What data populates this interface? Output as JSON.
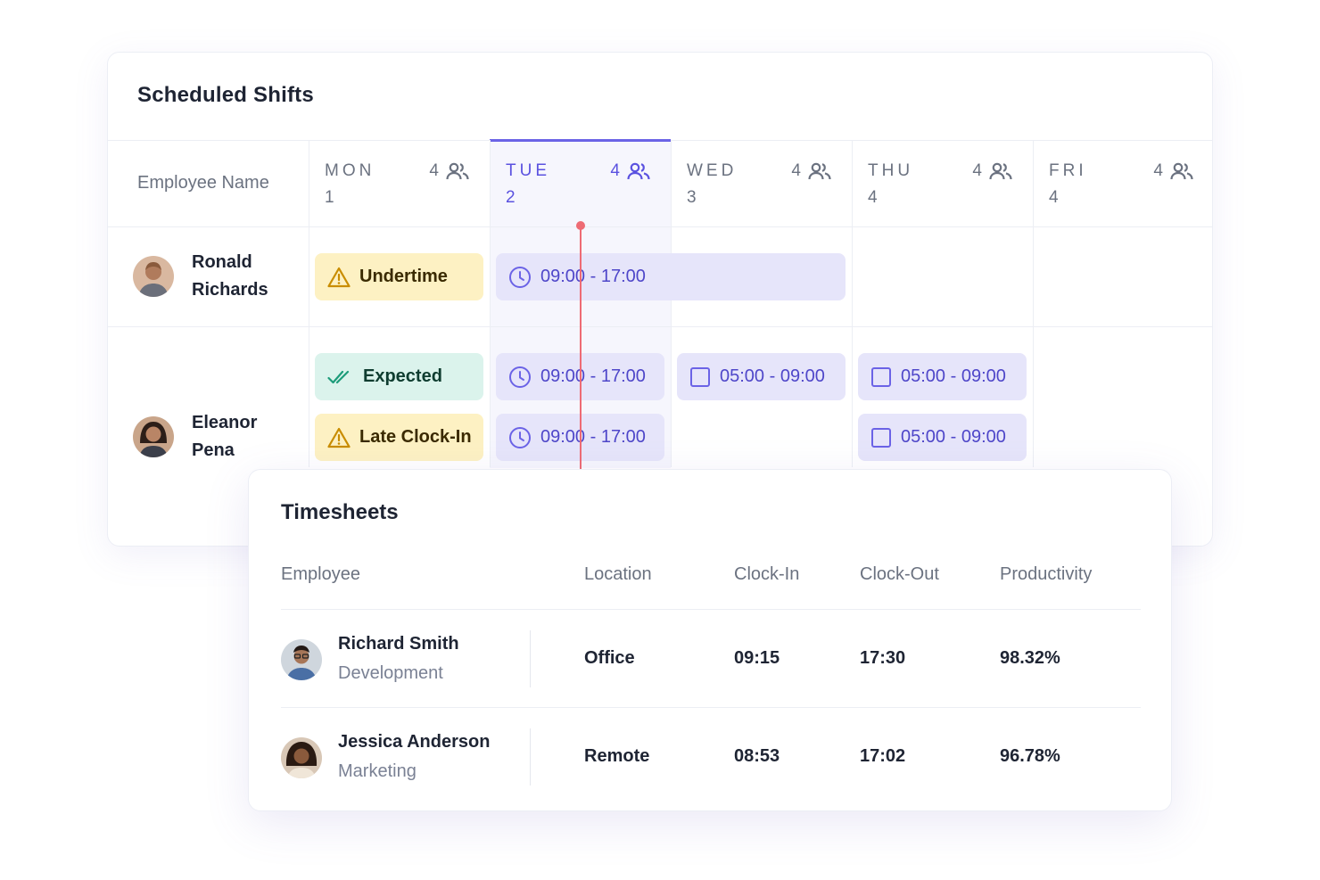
{
  "shifts": {
    "title": "Scheduled Shifts",
    "employee_header": "Employee Name",
    "days": [
      {
        "name": "MON",
        "num": "1",
        "count": "4",
        "active": false
      },
      {
        "name": "TUE",
        "num": "2",
        "count": "4",
        "active": true
      },
      {
        "name": "WED",
        "num": "3",
        "count": "4",
        "active": false
      },
      {
        "name": "THU",
        "num": "4",
        "count": "4",
        "active": false
      },
      {
        "name": "FRI",
        "num": "4",
        "count": "4",
        "active": false
      }
    ],
    "employees": [
      {
        "name": "Ronald Richards",
        "status": [
          {
            "label": "Undertime",
            "kind": "warn"
          }
        ],
        "shifts": [
          "09:00 - 17:00"
        ]
      },
      {
        "name": "Eleanor Pena",
        "status": [
          {
            "label": "Expected",
            "kind": "ok"
          },
          {
            "label": "Late Clock-In",
            "kind": "warn"
          }
        ],
        "shifts": [
          "09:00 - 17:00",
          "09:00 - 17:00",
          "05:00 - 09:00",
          "05:00 - 09:00",
          "05:00 - 09:00"
        ]
      }
    ],
    "colors": {
      "accent": "#6b63e6",
      "now_line": "#ee6b74",
      "warn_bg": "#fdf1c3",
      "ok_bg": "#dbf3ec",
      "shift_bg": "#e6e5fa"
    }
  },
  "timesheets": {
    "title": "Timesheets",
    "headers": [
      "Employee",
      "Location",
      "Clock-In",
      "Clock-Out",
      "Productivity"
    ],
    "rows": [
      {
        "name": "Richard Smith",
        "dept": "Development",
        "location": "Office",
        "clock_in": "09:15",
        "clock_out": "17:30",
        "productivity": "98.32%"
      },
      {
        "name": "Jessica Anderson",
        "dept": "Marketing",
        "location": "Remote",
        "clock_in": "08:53",
        "clock_out": "17:02",
        "productivity": "96.78%"
      }
    ]
  }
}
